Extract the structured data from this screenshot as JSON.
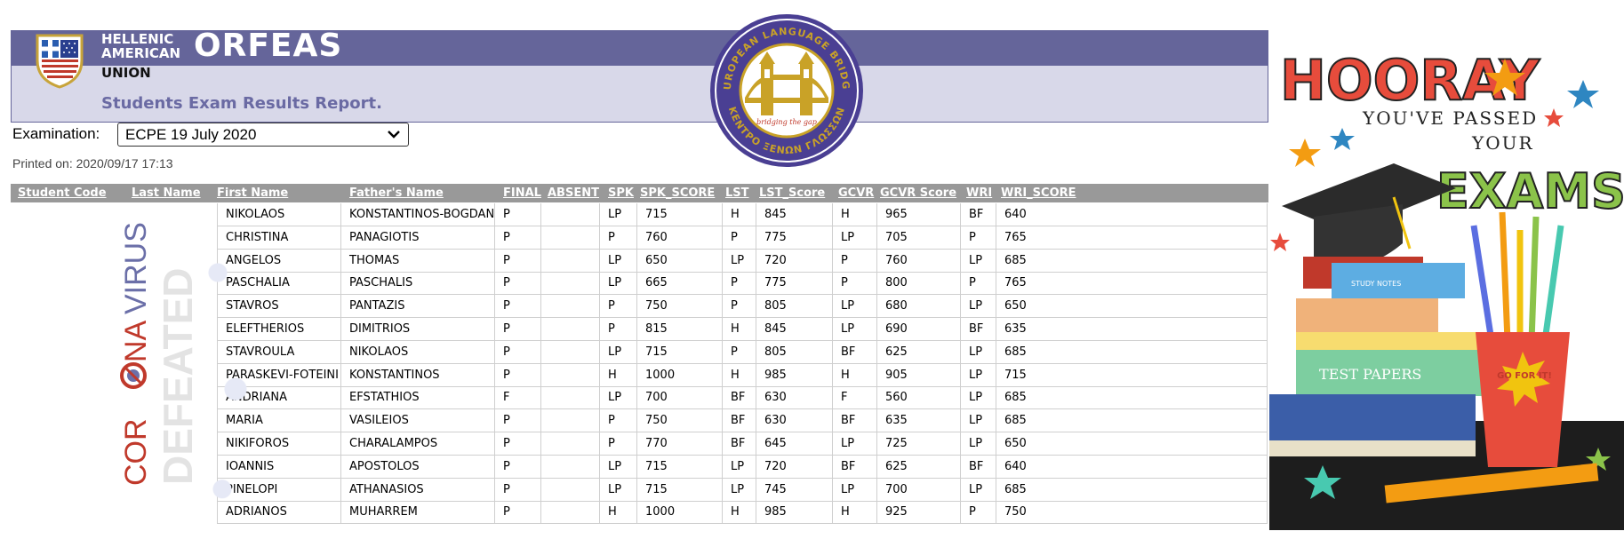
{
  "header": {
    "org_line1": "HELLENIC",
    "org_line2": "AMERICAN",
    "org_line3": "UNION",
    "brand": "ORFEAS",
    "report_title": "Students Exam Results Report."
  },
  "exam": {
    "label": "Examination:",
    "selected": "ECPE 19 July 2020",
    "printed_on": "Printed on: 2020/09/17 17:13"
  },
  "badge": {
    "top_text": "EUROPEAN LANGUAGE BRIDGE",
    "bottom_text": "ΚΕΝΤΡΟ ΞΕΝΩΝ ΓΛΩΣΣΩΝ",
    "tagline": "bridging the gap"
  },
  "table": {
    "columns": [
      "Student Code",
      "Last Name",
      "First Name",
      "Father's Name",
      "FINAL",
      "ABSENT",
      "SPK",
      "SPK_SCORE",
      "LST",
      "LST_Score",
      "GCVR",
      "GCVR Score",
      "WRI",
      "WRI_SCORE"
    ],
    "rows": [
      {
        "first": "NIKOLAOS",
        "father": "KONSTANTINOS-BOGDAN",
        "final": "P",
        "absent": "",
        "spk": "LP",
        "spk_score": "715",
        "lst": "H",
        "lst_score": "845",
        "gcvr": "H",
        "gcvr_score": "965",
        "wri": "BF",
        "wri_score": "640"
      },
      {
        "first": "CHRISTINA",
        "father": "PANAGIOTIS",
        "final": "P",
        "absent": "",
        "spk": "P",
        "spk_score": "760",
        "lst": "P",
        "lst_score": "775",
        "gcvr": "LP",
        "gcvr_score": "705",
        "wri": "P",
        "wri_score": "765"
      },
      {
        "first": "ANGELOS",
        "father": "THOMAS",
        "final": "P",
        "absent": "",
        "spk": "LP",
        "spk_score": "650",
        "lst": "LP",
        "lst_score": "720",
        "gcvr": "P",
        "gcvr_score": "760",
        "wri": "LP",
        "wri_score": "685"
      },
      {
        "first": "PASCHALIA",
        "father": "PASCHALIS",
        "final": "P",
        "absent": "",
        "spk": "LP",
        "spk_score": "665",
        "lst": "P",
        "lst_score": "775",
        "gcvr": "P",
        "gcvr_score": "800",
        "wri": "P",
        "wri_score": "765"
      },
      {
        "first": "STAVROS",
        "father": "PANTAZIS",
        "final": "P",
        "absent": "",
        "spk": "P",
        "spk_score": "750",
        "lst": "P",
        "lst_score": "805",
        "gcvr": "LP",
        "gcvr_score": "680",
        "wri": "LP",
        "wri_score": "650"
      },
      {
        "first": "ELEFTHERIOS",
        "father": "DIMITRIOS",
        "final": "P",
        "absent": "",
        "spk": "P",
        "spk_score": "815",
        "lst": "H",
        "lst_score": "845",
        "gcvr": "LP",
        "gcvr_score": "690",
        "wri": "BF",
        "wri_score": "635"
      },
      {
        "first": "STAVROULA",
        "father": "NIKOLAOS",
        "final": "P",
        "absent": "",
        "spk": "LP",
        "spk_score": "715",
        "lst": "P",
        "lst_score": "805",
        "gcvr": "BF",
        "gcvr_score": "625",
        "wri": "LP",
        "wri_score": "685"
      },
      {
        "first": "PARASKEVI-FOTEINI",
        "father": "KONSTANTINOS",
        "final": "P",
        "absent": "",
        "spk": "H",
        "spk_score": "1000",
        "lst": "H",
        "lst_score": "985",
        "gcvr": "H",
        "gcvr_score": "905",
        "wri": "LP",
        "wri_score": "715"
      },
      {
        "first": "ANDRIANA",
        "father": "EFSTATHIOS",
        "final": "F",
        "absent": "",
        "spk": "LP",
        "spk_score": "700",
        "lst": "BF",
        "lst_score": "630",
        "gcvr": "F",
        "gcvr_score": "560",
        "wri": "LP",
        "wri_score": "685"
      },
      {
        "first": "MARIA",
        "father": "VASILEIOS",
        "final": "P",
        "absent": "",
        "spk": "P",
        "spk_score": "750",
        "lst": "BF",
        "lst_score": "630",
        "gcvr": "BF",
        "gcvr_score": "635",
        "wri": "LP",
        "wri_score": "685"
      },
      {
        "first": "NIKIFOROS",
        "father": "CHARALAMPOS",
        "final": "P",
        "absent": "",
        "spk": "P",
        "spk_score": "770",
        "lst": "BF",
        "lst_score": "645",
        "gcvr": "LP",
        "gcvr_score": "725",
        "wri": "LP",
        "wri_score": "650"
      },
      {
        "first": "IOANNIS",
        "father": "APOSTOLOS",
        "final": "P",
        "absent": "",
        "spk": "LP",
        "spk_score": "715",
        "lst": "LP",
        "lst_score": "720",
        "gcvr": "BF",
        "gcvr_score": "625",
        "wri": "BF",
        "wri_score": "640"
      },
      {
        "first": "PINELOPI",
        "father": "ATHANASIOS",
        "final": "P",
        "absent": "",
        "spk": "LP",
        "spk_score": "715",
        "lst": "LP",
        "lst_score": "745",
        "gcvr": "LP",
        "gcvr_score": "700",
        "wri": "LP",
        "wri_score": "685"
      },
      {
        "first": "ADRIANOS",
        "father": "MUHARREM",
        "final": "P",
        "absent": "",
        "spk": "H",
        "spk_score": "1000",
        "lst": "H",
        "lst_score": "985",
        "gcvr": "H",
        "gcvr_score": "925",
        "wri": "P",
        "wri_score": "750"
      }
    ]
  },
  "side_banner": {
    "line1_a": "COR",
    "line1_b": "NA",
    "line1_c": "VIRUS",
    "line2": "DEFEATED"
  },
  "poster": {
    "hooray": "HOORAY",
    "line2": "YOU'VE PASSED",
    "line3": "YOUR",
    "exams": "EXAMS!",
    "book1": "STUDY NOTES",
    "book2": "TEST PAPERS",
    "cup_text": "GO FOR IT!"
  },
  "colors": {
    "header_dark": "#65659a",
    "header_light": "#d8d8e9",
    "table_header": "#999999",
    "covid_red": "#c0392b",
    "badge_gold": "#c9a227"
  }
}
